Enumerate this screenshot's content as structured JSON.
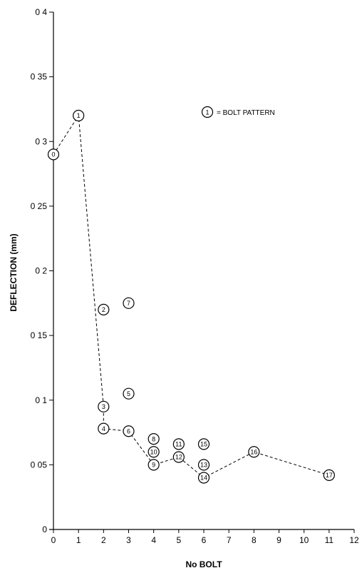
{
  "chart_data": {
    "type": "scatter",
    "xlabel": "No BOLT",
    "ylabel": "DEFLECTION (mm)",
    "xlim": [
      0,
      12
    ],
    "ylim": [
      0,
      0.4
    ],
    "x_ticks": [
      {
        "value": 0,
        "label": "0"
      },
      {
        "value": 1,
        "label": "1"
      },
      {
        "value": 2,
        "label": "2"
      },
      {
        "value": 3,
        "label": "3"
      },
      {
        "value": 4,
        "label": "4"
      },
      {
        "value": 5,
        "label": "5"
      },
      {
        "value": 6,
        "label": "6"
      },
      {
        "value": 7,
        "label": "7"
      },
      {
        "value": 8,
        "label": "8"
      },
      {
        "value": 9,
        "label": "9"
      },
      {
        "value": 10,
        "label": "10"
      },
      {
        "value": 11,
        "label": "11"
      },
      {
        "value": 12,
        "label": "12"
      }
    ],
    "y_ticks": [
      {
        "value": 0,
        "label": "0"
      },
      {
        "value": 0.05,
        "label": "0 05"
      },
      {
        "value": 0.1,
        "label": "0 1"
      },
      {
        "value": 0.15,
        "label": "0 15"
      },
      {
        "value": 0.2,
        "label": "0 2"
      },
      {
        "value": 0.25,
        "label": "0 25"
      },
      {
        "value": 0.3,
        "label": "0 3"
      },
      {
        "value": 0.35,
        "label": "0 35"
      },
      {
        "value": 0.4,
        "label": "0 4"
      }
    ],
    "grid": false,
    "legend": {
      "marker": "1",
      "text": "= BOLT PATTERN",
      "position": "top-right"
    },
    "points": [
      {
        "label": "0",
        "x": 0,
        "y": 0.29
      },
      {
        "label": "1",
        "x": 1,
        "y": 0.32
      },
      {
        "label": "2",
        "x": 2,
        "y": 0.17
      },
      {
        "label": "3",
        "x": 2,
        "y": 0.095
      },
      {
        "label": "4",
        "x": 2,
        "y": 0.078
      },
      {
        "label": "5",
        "x": 3,
        "y": 0.105
      },
      {
        "label": "6",
        "x": 3,
        "y": 0.076
      },
      {
        "label": "7",
        "x": 3,
        "y": 0.175
      },
      {
        "label": "8",
        "x": 4,
        "y": 0.07
      },
      {
        "label": "9",
        "x": 4,
        "y": 0.05
      },
      {
        "label": "10",
        "x": 4,
        "y": 0.06
      },
      {
        "label": "11",
        "x": 5,
        "y": 0.066
      },
      {
        "label": "12",
        "x": 5,
        "y": 0.056
      },
      {
        "label": "13",
        "x": 6,
        "y": 0.05
      },
      {
        "label": "14",
        "x": 6,
        "y": 0.04
      },
      {
        "label": "15",
        "x": 6,
        "y": 0.066
      },
      {
        "label": "16",
        "x": 8,
        "y": 0.06
      },
      {
        "label": "17",
        "x": 11,
        "y": 0.042
      }
    ],
    "dashed_line": [
      "0",
      "1",
      "3",
      "4",
      "6",
      "9",
      "12",
      "14",
      "16",
      "17"
    ],
    "colors": {
      "ink": "#000000",
      "marker_fill": "#ffffff"
    }
  }
}
